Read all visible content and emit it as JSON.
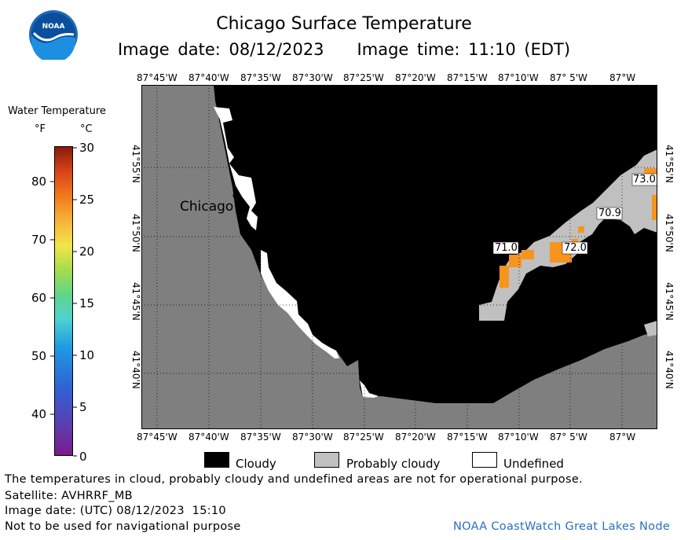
{
  "header": {
    "title": "Chicago Surface Temperature",
    "image_date": "Image date: 08/12/2023",
    "image_time": "Image time: 11:10 (EDT)"
  },
  "colorbar": {
    "title": "Water Temperature",
    "unit_f": "°F",
    "unit_c": "°C",
    "f_ticks": [
      "80",
      "70",
      "60",
      "50",
      "40"
    ],
    "c_ticks": [
      "30",
      "25",
      "20",
      "15",
      "10",
      "5",
      "0"
    ]
  },
  "map": {
    "lon_labels": [
      "87°45'W",
      "87°40'W",
      "87°35'W",
      "87°30'W",
      "87°25'W",
      "87°20'W",
      "87°15'W",
      "87°10'W",
      "87° 5'W",
      "87°W"
    ],
    "lat_labels": [
      "41°55'N",
      "41°50'N",
      "41°45'N",
      "41°40'N"
    ],
    "city_label": "Chicago",
    "temp_labels": [
      "73.0",
      "70.9",
      "71.0",
      "72.0"
    ],
    "colors": {
      "land": "#7f7f7f",
      "cloudy": "#000000",
      "probably_cloudy": "#c0c0c0",
      "warm_water": "#f7941d",
      "undefined": "#ffffff"
    }
  },
  "legend": {
    "cloudy": "Cloudy",
    "probably_cloudy": "Probably cloudy",
    "undefined": "Undefined"
  },
  "footer": {
    "disclaimer": "The temperatures in cloud, probably cloudy and undefined areas are not for operational purpose.",
    "satellite": "Satellite: AVHRRF_MB",
    "utc_date": "Image date: (UTC) 08/12/2023  15:10",
    "nav_warning": "Not to be used for navigational purpose",
    "credit": "NOAA CoastWatch Great Lakes Node"
  }
}
